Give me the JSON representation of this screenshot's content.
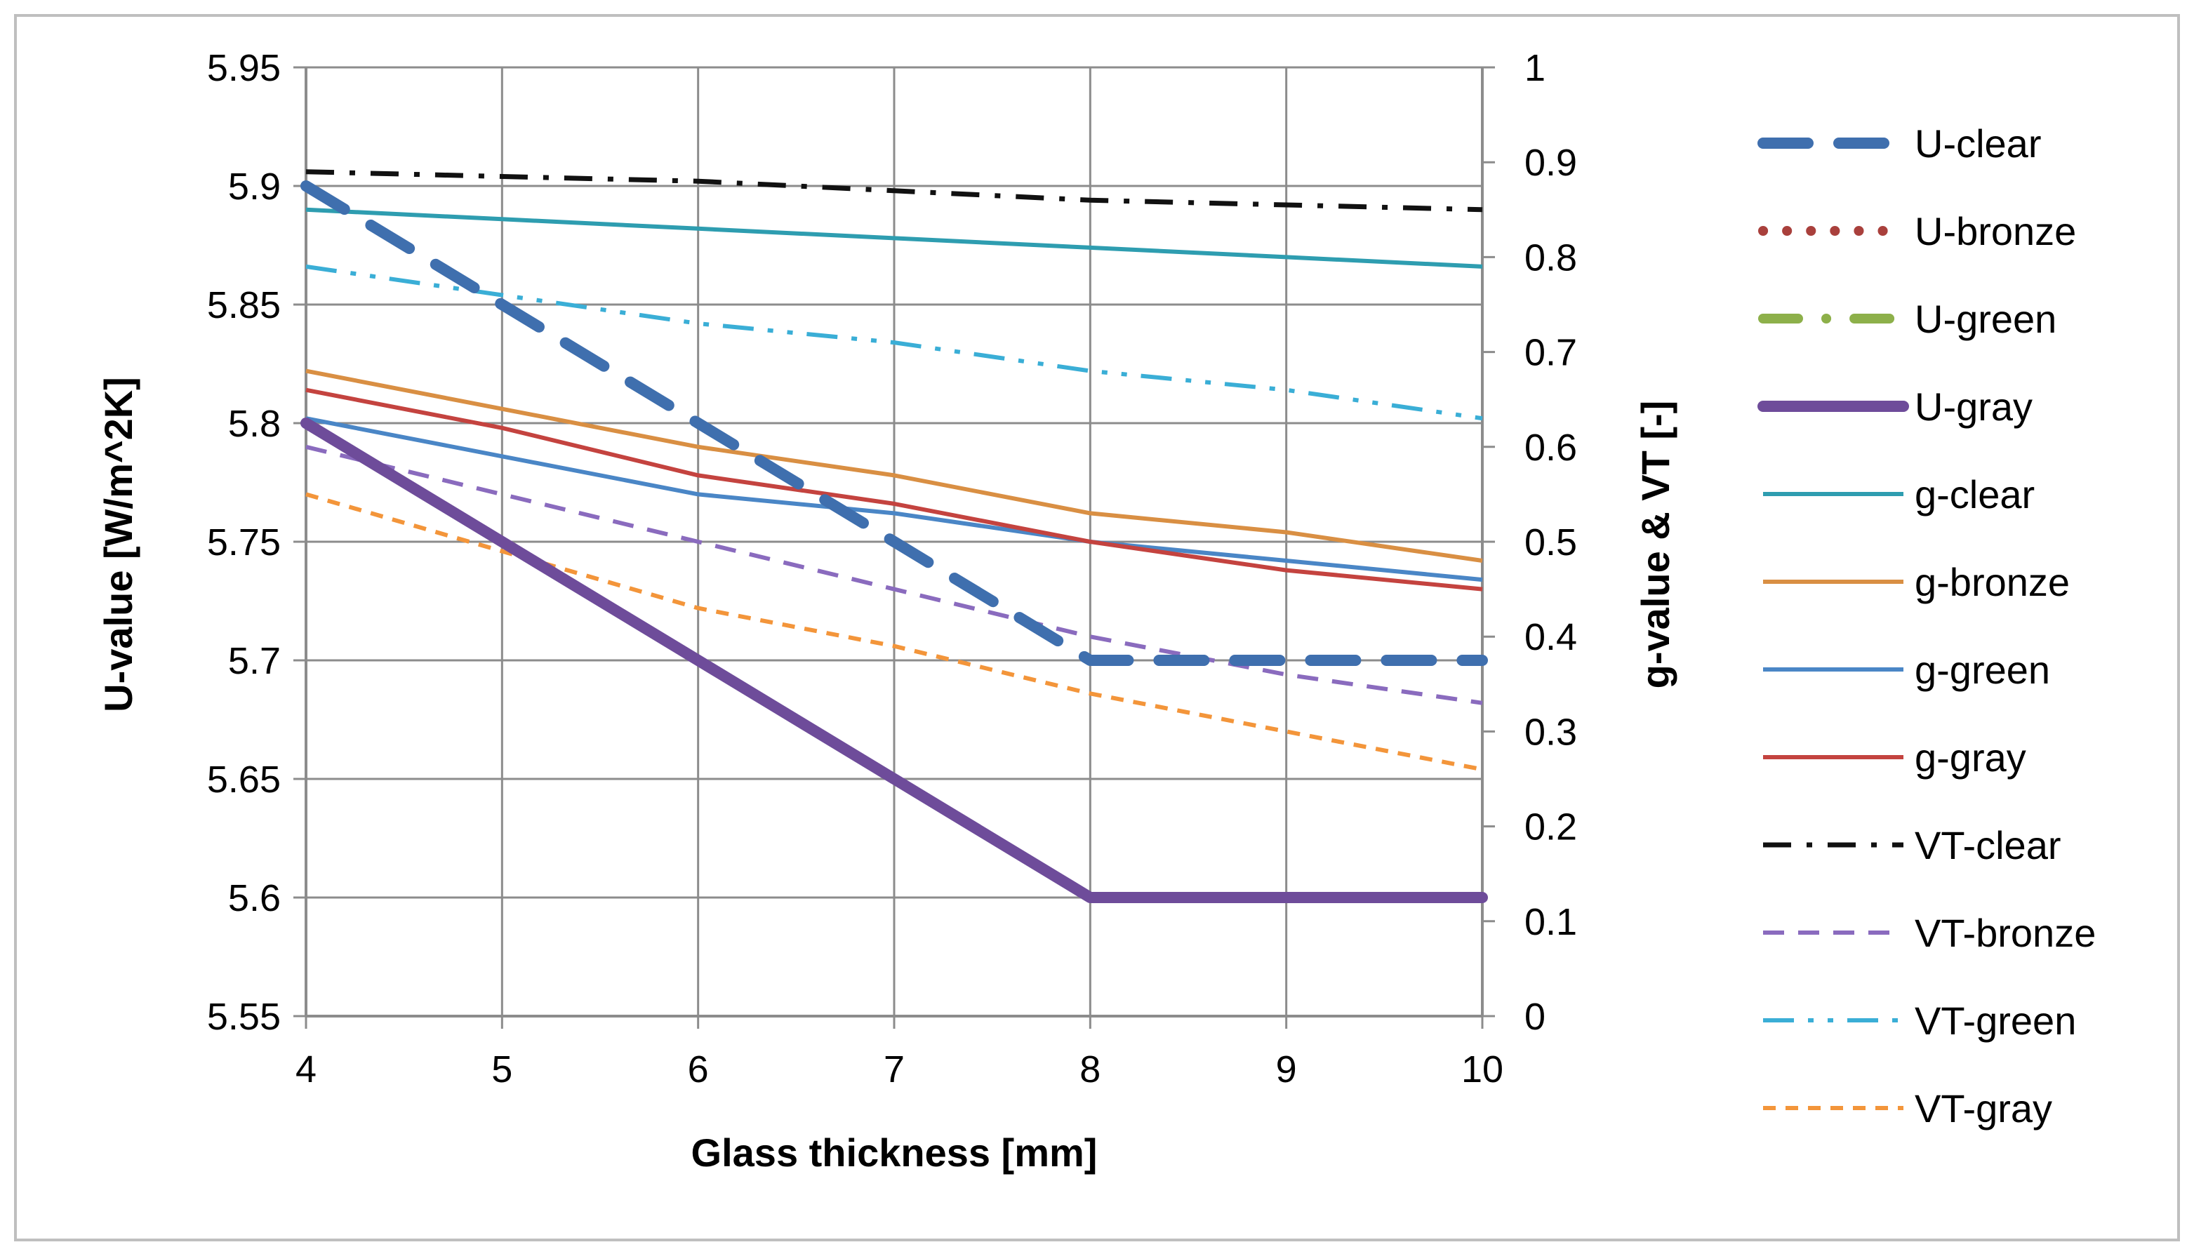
{
  "chart_data": {
    "type": "line",
    "title": "",
    "xlabel": "Glass thickness [mm]",
    "ylabel_left": "U-value [W/m^2K]",
    "ylabel_right": "g-value & VT [-]",
    "x": [
      4,
      5,
      6,
      7,
      8,
      9,
      10
    ],
    "x_ticks": [
      "4",
      "5",
      "6",
      "7",
      "8",
      "9",
      "10"
    ],
    "ylim_left": [
      5.55,
      5.95
    ],
    "ylim_right": [
      0,
      1
    ],
    "y_ticks_left": [
      "5.55",
      "5.6",
      "5.65",
      "5.7",
      "5.75",
      "5.8",
      "5.85",
      "5.9",
      "5.95"
    ],
    "y_ticks_right": [
      "0",
      "0.1",
      "0.2",
      "0.3",
      "0.4",
      "0.5",
      "0.6",
      "0.7",
      "0.8",
      "0.9",
      "1"
    ],
    "grid": true,
    "legend_position": "right",
    "series": [
      {
        "name": "U-clear",
        "axis": "left",
        "color": "#3f6fae",
        "dash": "dash-heavy",
        "values": [
          5.9,
          5.85,
          5.8,
          5.75,
          5.7,
          5.7,
          5.7
        ]
      },
      {
        "name": "U-bronze",
        "axis": "left",
        "color": "#a9403c",
        "dash": "dot",
        "values": [
          5.8,
          5.75,
          5.7,
          5.65,
          5.6,
          5.6,
          5.6
        ]
      },
      {
        "name": "U-green",
        "axis": "left",
        "color": "#8db04a",
        "dash": "dash-dot-heavy",
        "values": [
          5.8,
          5.75,
          5.7,
          5.65,
          5.6,
          5.6,
          5.6
        ]
      },
      {
        "name": "U-gray",
        "axis": "left",
        "color": "#6e4c9a",
        "dash": "solid-heavy",
        "values": [
          5.8,
          5.75,
          5.7,
          5.65,
          5.6,
          5.6,
          5.6
        ]
      },
      {
        "name": "g-clear",
        "axis": "right",
        "color": "#2e9db0",
        "dash": "solid",
        "values": [
          0.85,
          0.84,
          0.83,
          0.82,
          0.81,
          0.8,
          0.79
        ]
      },
      {
        "name": "g-bronze",
        "axis": "right",
        "color": "#d98f43",
        "dash": "solid",
        "values": [
          0.68,
          0.64,
          0.6,
          0.57,
          0.53,
          0.51,
          0.48
        ]
      },
      {
        "name": "g-green",
        "axis": "right",
        "color": "#4a86c6",
        "dash": "solid",
        "values": [
          0.63,
          0.59,
          0.55,
          0.53,
          0.5,
          0.48,
          0.46
        ]
      },
      {
        "name": "g-gray",
        "axis": "right",
        "color": "#c4433f",
        "dash": "solid",
        "values": [
          0.66,
          0.62,
          0.57,
          0.54,
          0.5,
          0.47,
          0.45
        ]
      },
      {
        "name": "VT-clear",
        "axis": "right",
        "color": "#111111",
        "dash": "dash-dot",
        "values": [
          0.89,
          0.885,
          0.88,
          0.87,
          0.86,
          0.855,
          0.85
        ]
      },
      {
        "name": "VT-bronze",
        "axis": "right",
        "color": "#8a6bbe",
        "dash": "dash",
        "values": [
          0.6,
          0.55,
          0.5,
          0.45,
          0.4,
          0.36,
          0.33
        ]
      },
      {
        "name": "VT-green",
        "axis": "right",
        "color": "#3aaed6",
        "dash": "dash-dot-dot",
        "values": [
          0.79,
          0.76,
          0.73,
          0.71,
          0.68,
          0.66,
          0.63
        ]
      },
      {
        "name": "VT-gray",
        "axis": "right",
        "color": "#f3953a",
        "dash": "dash-small",
        "values": [
          0.55,
          0.49,
          0.43,
          0.39,
          0.34,
          0.3,
          0.26
        ]
      }
    ]
  }
}
